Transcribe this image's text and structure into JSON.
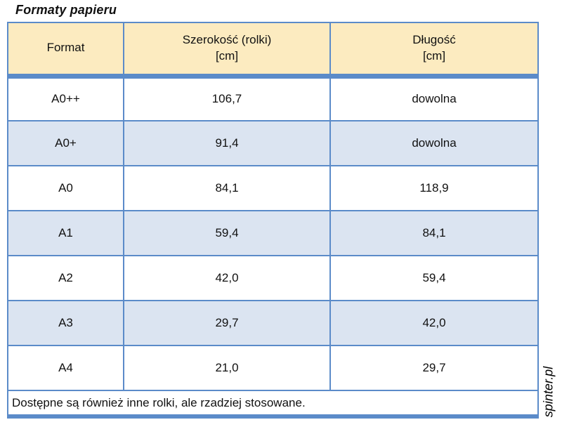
{
  "page": {
    "title": "Formaty papieru",
    "watermark": "spinter.pl"
  },
  "colors": {
    "border": "#5b8bc9",
    "header_bg": "#fcebc0",
    "row_alt_bg": "#dbe4f1"
  },
  "table": {
    "columns": [
      {
        "label": "Format"
      },
      {
        "label": "Szerokość (rolki)\n[cm]"
      },
      {
        "label": "Długość\n[cm]"
      }
    ],
    "rows": [
      {
        "format": "A0++",
        "width": "106,7",
        "length": "dowolna"
      },
      {
        "format": "A0+",
        "width": "91,4",
        "length": "dowolna"
      },
      {
        "format": "A0",
        "width": "84,1",
        "length": "118,9"
      },
      {
        "format": "A1",
        "width": "59,4",
        "length": "84,1"
      },
      {
        "format": "A2",
        "width": "42,0",
        "length": "59,4"
      },
      {
        "format": "A3",
        "width": "29,7",
        "length": "42,0"
      },
      {
        "format": "A4",
        "width": "21,0",
        "length": "29,7"
      }
    ],
    "footnote": "Dostępne są również inne rolki, ale rzadziej stosowane."
  }
}
